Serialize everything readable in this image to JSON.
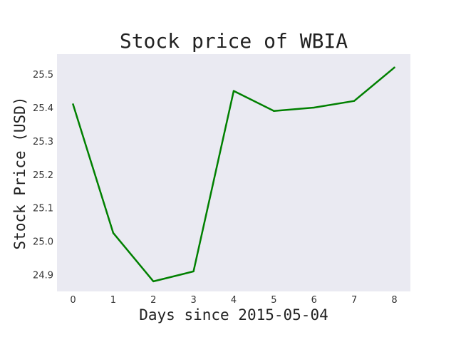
{
  "chart_data": {
    "type": "line",
    "title": "Stock price of WBIA",
    "xlabel": "Days since 2015-05-04",
    "ylabel": "Stock Price (USD)",
    "x": [
      0,
      1,
      2,
      3,
      4,
      5,
      6,
      7,
      8
    ],
    "x_ticks": [
      "0",
      "1",
      "2",
      "3",
      "4",
      "5",
      "6",
      "7",
      "8"
    ],
    "y_ticks": [
      "24.9",
      "25.0",
      "25.1",
      "25.2",
      "25.3",
      "25.4",
      "25.5"
    ],
    "series": [
      {
        "values": [
          25.41,
          25.025,
          24.88,
          24.91,
          25.45,
          25.39,
          25.4,
          25.42,
          25.52
        ],
        "color": "#008000"
      }
    ],
    "xlim": [
      -0.4,
      8.4
    ],
    "ylim": [
      24.85,
      25.56
    ],
    "grid": false,
    "background_color": "#eaeaf2"
  }
}
